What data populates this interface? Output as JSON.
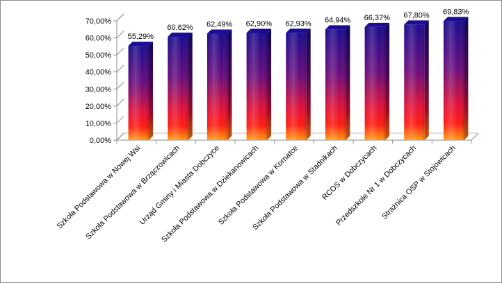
{
  "chart_data": {
    "type": "bar",
    "title": "",
    "xlabel": "",
    "ylabel": "",
    "categories": [
      "Szkoła Podstawowa w Nowej Wsi",
      "Szkoła Podstawowa w Brzączowicach",
      "Urząd Gminy i Miasta Dobczyce",
      "Szkoła Podstawowa w Dziekanowicach",
      "Szkoła Podstawowa w Kornatce",
      "Szkoła Podstawowa w Stadnikach",
      "RCOS w Dobczycach",
      "Przedszkole Nr 1 w Dobczycach",
      "Strażnica OSP w Stojowicach"
    ],
    "values": [
      55.29,
      60.62,
      62.49,
      62.9,
      62.93,
      64.94,
      66.37,
      67.8,
      69.83
    ],
    "value_labels": [
      "55,29%",
      "60,62%",
      "62,49%",
      "62,90%",
      "62,93%",
      "64,94%",
      "66,37%",
      "67,80%",
      "69,83%"
    ],
    "ylim": [
      0,
      70
    ],
    "y_ticks": [
      "0,00%",
      "10,00%",
      "20,00%",
      "30,00%",
      "40,00%",
      "50,00%",
      "60,00%",
      "70,00%"
    ],
    "grid": false,
    "legend": "none",
    "style": "3d-cylinder-gradient",
    "colors": {
      "top": "#1a0a8c",
      "middle": "#a01060",
      "lower": "#ff1010",
      "bottom": "#ff9a10",
      "axis": "#8c8c8c"
    }
  }
}
